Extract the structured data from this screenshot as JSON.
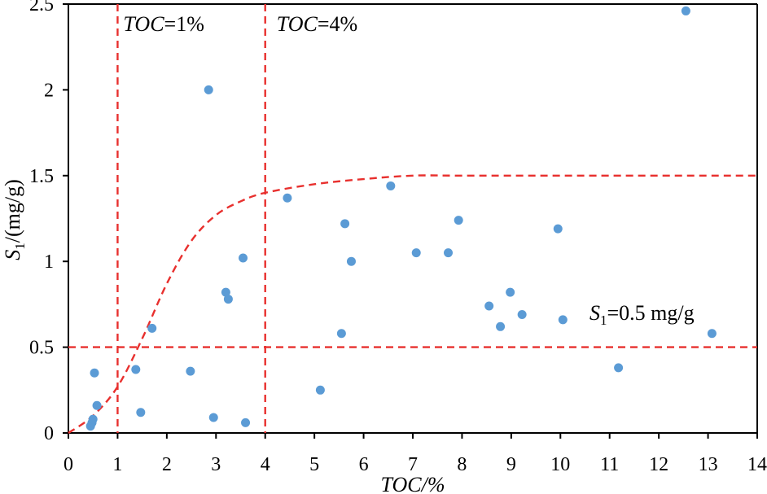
{
  "chart_data": {
    "type": "scatter",
    "xlabel": "TOC/%",
    "ylabel": "S1/(mg/g)",
    "xlim": [
      0,
      14
    ],
    "ylim": [
      0,
      2.5
    ],
    "x_ticks": [
      "0",
      "1",
      "2",
      "3",
      "4",
      "5",
      "6",
      "7",
      "8",
      "9",
      "10",
      "11",
      "12",
      "13",
      "14"
    ],
    "y_ticks": [
      "0",
      "0.5",
      "1",
      "1.5",
      "2",
      "2.5"
    ],
    "grid": false,
    "point_color": "#5b9bd5",
    "reference_color": "#e8302e",
    "points": [
      {
        "x": 0.45,
        "y": 0.04
      },
      {
        "x": 0.48,
        "y": 0.06
      },
      {
        "x": 0.5,
        "y": 0.08
      },
      {
        "x": 0.53,
        "y": 0.35
      },
      {
        "x": 0.58,
        "y": 0.16
      },
      {
        "x": 1.37,
        "y": 0.37
      },
      {
        "x": 1.47,
        "y": 0.12
      },
      {
        "x": 1.7,
        "y": 0.61
      },
      {
        "x": 2.48,
        "y": 0.36
      },
      {
        "x": 2.85,
        "y": 2.0
      },
      {
        "x": 2.95,
        "y": 0.09
      },
      {
        "x": 3.2,
        "y": 0.82
      },
      {
        "x": 3.25,
        "y": 0.78
      },
      {
        "x": 3.55,
        "y": 1.02
      },
      {
        "x": 3.6,
        "y": 0.06
      },
      {
        "x": 4.45,
        "y": 1.37
      },
      {
        "x": 5.12,
        "y": 0.25
      },
      {
        "x": 5.55,
        "y": 0.58
      },
      {
        "x": 5.62,
        "y": 1.22
      },
      {
        "x": 5.75,
        "y": 1.0
      },
      {
        "x": 6.55,
        "y": 1.44
      },
      {
        "x": 7.07,
        "y": 1.05
      },
      {
        "x": 7.72,
        "y": 1.05
      },
      {
        "x": 7.93,
        "y": 1.24
      },
      {
        "x": 8.55,
        "y": 0.74
      },
      {
        "x": 8.78,
        "y": 0.62
      },
      {
        "x": 8.98,
        "y": 0.82
      },
      {
        "x": 9.22,
        "y": 0.69
      },
      {
        "x": 9.95,
        "y": 1.19
      },
      {
        "x": 10.05,
        "y": 0.66
      },
      {
        "x": 11.18,
        "y": 0.38
      },
      {
        "x": 12.55,
        "y": 2.46
      },
      {
        "x": 13.08,
        "y": 0.58
      }
    ],
    "reference_lines": [
      {
        "orientation": "vertical",
        "value": 1,
        "label_main": "TOC",
        "label_rest": "=1%"
      },
      {
        "orientation": "vertical",
        "value": 4,
        "label_main": "TOC",
        "label_rest": "=4%"
      },
      {
        "orientation": "horizontal",
        "value": 0.5,
        "label_main": "S",
        "label_sub": "1",
        "label_rest": "=0.5 mg/g"
      }
    ],
    "trend_curve": [
      {
        "x": 0,
        "y": 0
      },
      {
        "x": 0.5,
        "y": 0.1
      },
      {
        "x": 1.0,
        "y": 0.27
      },
      {
        "x": 1.5,
        "y": 0.55
      },
      {
        "x": 2.0,
        "y": 0.87
      },
      {
        "x": 2.5,
        "y": 1.12
      },
      {
        "x": 3.0,
        "y": 1.27
      },
      {
        "x": 3.5,
        "y": 1.35
      },
      {
        "x": 4.0,
        "y": 1.4
      },
      {
        "x": 5.0,
        "y": 1.45
      },
      {
        "x": 6.0,
        "y": 1.48
      },
      {
        "x": 7.0,
        "y": 1.5
      },
      {
        "x": 8.0,
        "y": 1.5
      },
      {
        "x": 10.0,
        "y": 1.5
      },
      {
        "x": 14.0,
        "y": 1.5
      }
    ]
  }
}
